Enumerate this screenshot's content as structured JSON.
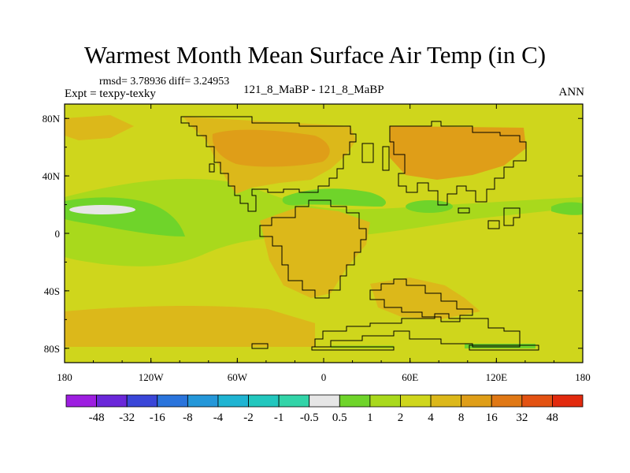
{
  "title": "Warmest Month Mean Surface Air Temp (in C)",
  "stats": "rmsd= 3.78936 diff= 3.24953",
  "expt": "Expt = texpy-texky",
  "subtitle": "121_8_MaBP - 121_8_MaBP",
  "season": "ANN",
  "x_ticks": [
    "180",
    "120W",
    "60W",
    "0",
    "60E",
    "120E",
    "180"
  ],
  "y_ticks": [
    "80N",
    "40N",
    "0",
    "40S",
    "80S"
  ],
  "colorbar": {
    "labels": [
      "-48",
      "-32",
      "-16",
      "-8",
      "-4",
      "-2",
      "-1",
      "-0.5",
      "0.5",
      "1",
      "2",
      "4",
      "8",
      "16",
      "32",
      "48"
    ],
    "colors": [
      "#9d1ee0",
      "#6a27d9",
      "#3a46d8",
      "#2a74dc",
      "#2497d9",
      "#1fb4d2",
      "#22c7be",
      "#32d4a8",
      "#e6e6e6",
      "#6fd42a",
      "#a9d91c",
      "#cfd61c",
      "#dcb81a",
      "#df9e18",
      "#e07815",
      "#e35212",
      "#e22a0e"
    ]
  },
  "chart_data": {
    "type": "heatmap",
    "map_type": "global filled contour map",
    "title": "Warmest Month Mean Surface Air Temp (in C)",
    "x_range": [
      -180,
      180
    ],
    "y_range": [
      -90,
      90
    ],
    "coastlines": true,
    "legend_placement": "bottom",
    "background_level": "4",
    "regions": [
      {
        "name": "tropical Pacific band",
        "level": "2"
      },
      {
        "name": "equatorial Pacific core",
        "level": "1"
      },
      {
        "name": "central Pacific spot",
        "level": "0.5"
      },
      {
        "name": "Indian Ocean patch",
        "level": "1"
      },
      {
        "name": "Atlantic ocean patch",
        "level": "1"
      },
      {
        "name": "North Africa / Mediterranean",
        "level": "8"
      },
      {
        "name": "North America",
        "level": "8"
      },
      {
        "name": "Northern Asia",
        "level": "16"
      },
      {
        "name": "Africa",
        "level": "8"
      },
      {
        "name": "Antarctica edge",
        "level": "1"
      }
    ]
  }
}
